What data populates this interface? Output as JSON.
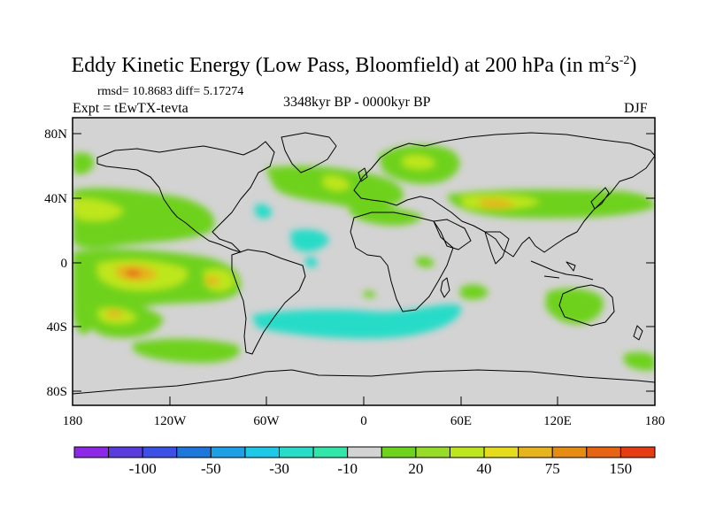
{
  "title": {
    "main": "Eddy Kinetic Energy (Low Pass, Bloomfield) at 200 hPa (in m",
    "sup1": "2",
    "mid": "s",
    "sup2": "-2",
    "end": ")"
  },
  "stats": "rmsd= 10.8683 diff= 5.17274",
  "experiment": "Expt = tEwTX-tevta",
  "period": "3348kyr BP - 0000kyr BP",
  "season": "DJF",
  "map": {
    "lat_ticks": [
      "80N",
      "40N",
      "0",
      "40S",
      "80S"
    ],
    "lon_ticks": [
      "180",
      "120W",
      "60W",
      "0",
      "60E",
      "120E",
      "180"
    ],
    "background_color": "#d3d3d3"
  },
  "colorbar": {
    "colors": [
      "#8c28e6",
      "#5a3cdc",
      "#3c50e6",
      "#1e78dc",
      "#1ea0e6",
      "#1ec8e6",
      "#28dcc8",
      "#32e6aa",
      "#d3d3d3",
      "#6ed21e",
      "#96dc28",
      "#bee61e",
      "#e6dc1e",
      "#e6b41e",
      "#e68c14",
      "#e66414",
      "#e63c14"
    ],
    "labels": [
      "-100",
      "-50",
      "-30",
      "-10",
      "20",
      "40",
      "75",
      "150"
    ]
  }
}
